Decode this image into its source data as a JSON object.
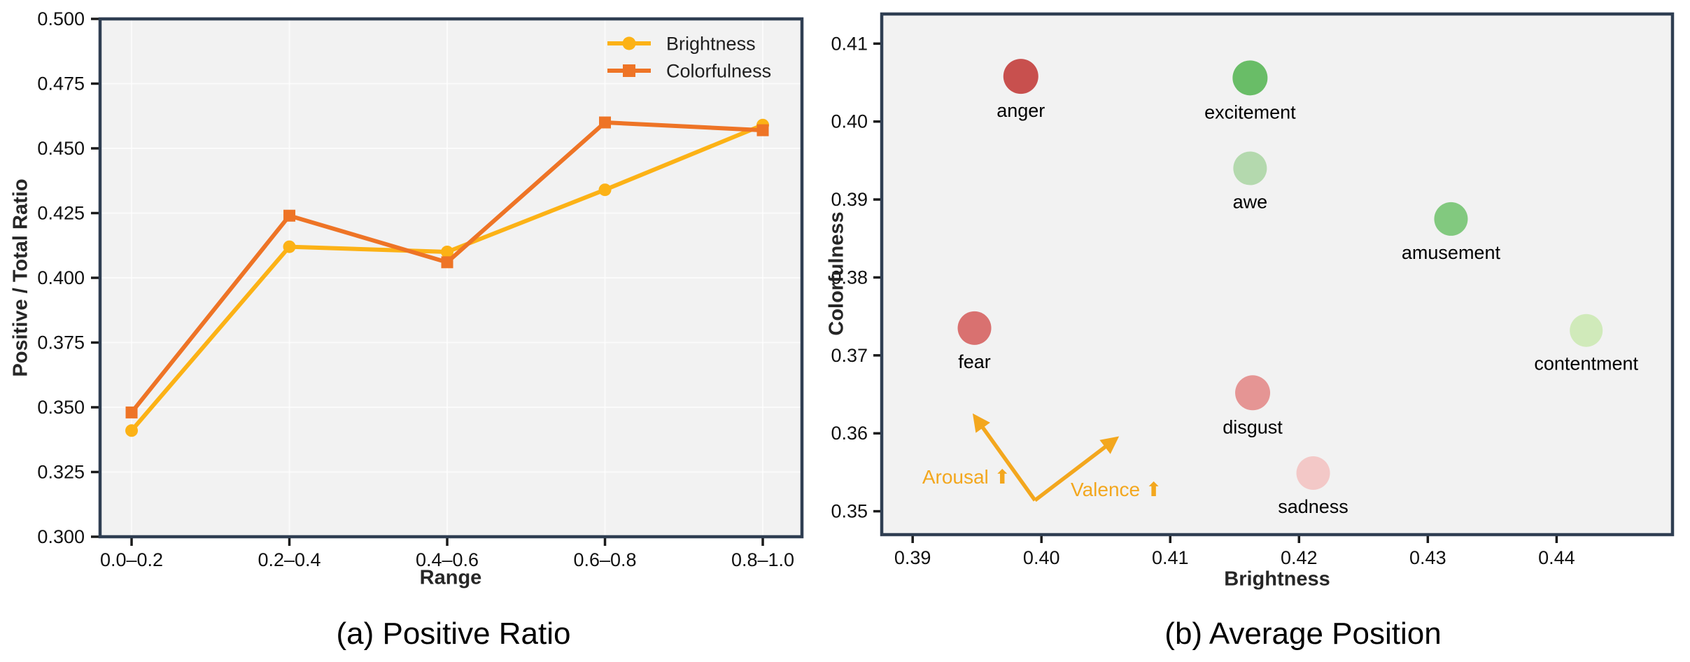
{
  "style": {
    "figure_bg": "#ffffff",
    "plot_bg": "#f2f2f2",
    "spine_color": "#2f3e52",
    "grid_color": "#ffffff",
    "tick_color": "#1a1a1a",
    "text_color": "#111111",
    "brightness_color": "#fcb216",
    "colorfulness_color": "#ee7426",
    "annotation_color": "#f3a71e"
  },
  "chart_data": [
    {
      "id": "positive_ratio",
      "type": "line",
      "caption": "(a) Positive Ratio",
      "xlabel": "Range",
      "ylabel": "Positive / Total Ratio",
      "categories": [
        "0.0–0.2",
        "0.2–0.4",
        "0.4–0.6",
        "0.6–0.8",
        "0.8–1.0"
      ],
      "ylim": [
        0.3,
        0.5
      ],
      "y_ticks": [
        {
          "value": 0.5,
          "label": "0.500"
        },
        {
          "value": 0.475,
          "label": "0.475"
        },
        {
          "value": 0.45,
          "label": "0.450"
        },
        {
          "value": 0.425,
          "label": "0.425"
        },
        {
          "value": 0.4,
          "label": "0.400"
        },
        {
          "value": 0.375,
          "label": "0.375"
        },
        {
          "value": 0.35,
          "label": "0.350"
        },
        {
          "value": 0.325,
          "label": "0.325"
        },
        {
          "value": 0.3,
          "label": "0.300"
        }
      ],
      "grid": true,
      "legend_position": "upper right",
      "series": [
        {
          "name": "Brightness",
          "marker": "circle",
          "color": "#fcb216",
          "values": [
            0.341,
            0.412,
            0.41,
            0.434,
            0.459
          ]
        },
        {
          "name": "Colorfulness",
          "marker": "square",
          "color": "#ee7426",
          "values": [
            0.348,
            0.424,
            0.406,
            0.46,
            0.457
          ]
        }
      ]
    },
    {
      "id": "average_position",
      "type": "scatter",
      "caption": "(b) Average Position",
      "xlabel": "Brightness",
      "ylabel": "Colorfulness",
      "xlim": [
        0.3876,
        0.449
      ],
      "ylim": [
        0.347,
        0.4138
      ],
      "x_ticks": [
        {
          "value": 0.39,
          "label": "0.39"
        },
        {
          "value": 0.4,
          "label": "0.40"
        },
        {
          "value": 0.41,
          "label": "0.41"
        },
        {
          "value": 0.42,
          "label": "0.42"
        },
        {
          "value": 0.43,
          "label": "0.43"
        },
        {
          "value": 0.44,
          "label": "0.44"
        }
      ],
      "y_ticks": [
        {
          "value": 0.41,
          "label": "0.41"
        },
        {
          "value": 0.4,
          "label": "0.40"
        },
        {
          "value": 0.39,
          "label": "0.39"
        },
        {
          "value": 0.38,
          "label": "0.38"
        },
        {
          "value": 0.37,
          "label": "0.37"
        },
        {
          "value": 0.36,
          "label": "0.36"
        },
        {
          "value": 0.35,
          "label": "0.35"
        }
      ],
      "grid": false,
      "points": [
        {
          "label": "anger",
          "x": 0.3984,
          "y": 0.4058,
          "color": "#c8504e",
          "size": 50
        },
        {
          "label": "excitement",
          "x": 0.4162,
          "y": 0.4056,
          "color": "#69bd67",
          "size": 50
        },
        {
          "label": "awe",
          "x": 0.4162,
          "y": 0.394,
          "color": "#b4d9ae",
          "size": 48
        },
        {
          "label": "amusement",
          "x": 0.4318,
          "y": 0.3875,
          "color": "#82c97f",
          "size": 48
        },
        {
          "label": "fear",
          "x": 0.3948,
          "y": 0.3735,
          "color": "#d97170",
          "size": 48
        },
        {
          "label": "contentment",
          "x": 0.4423,
          "y": 0.3732,
          "color": "#d0eaba",
          "size": 47
        },
        {
          "label": "disgust",
          "x": 0.4164,
          "y": 0.3652,
          "color": "#e59594",
          "size": 50
        },
        {
          "label": "sadness",
          "x": 0.4211,
          "y": 0.3549,
          "color": "#f3c8c7",
          "size": 48
        }
      ],
      "annotation": {
        "color": "#f3a71e",
        "vertex": {
          "x": 0.3995,
          "y": 0.3514
        },
        "arms": [
          {
            "tip_x": 0.3949,
            "tip_y": 0.362,
            "label": "Arousal",
            "arrow_glyph": "⬆"
          },
          {
            "tip_x": 0.4057,
            "tip_y": 0.3592,
            "label": "Valence",
            "arrow_glyph": "⬆"
          }
        ]
      }
    }
  ]
}
